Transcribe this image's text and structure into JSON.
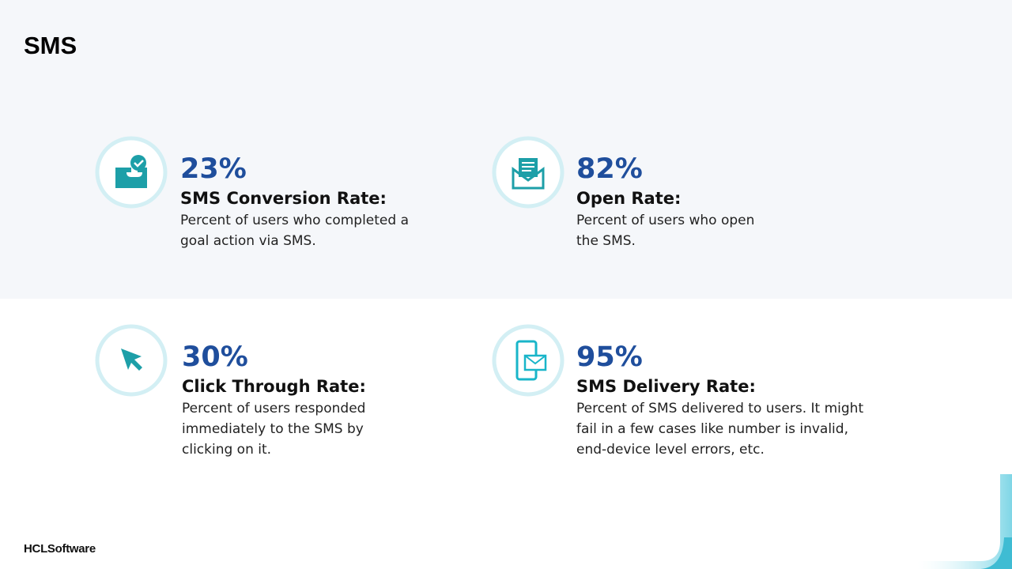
{
  "header": {
    "title": "SMS"
  },
  "metrics": [
    {
      "value": "23%",
      "label": "SMS Conversion Rate:",
      "description": [
        "Percent of users who completed a",
        "goal action via SMS."
      ]
    },
    {
      "value": "82%",
      "label": "Open Rate:",
      "description": [
        "Percent of users who open",
        "the SMS."
      ]
    },
    {
      "value": "30%",
      "label": "Click Through Rate:",
      "description": [
        "Percent of users responded",
        "immediately to the SMS by",
        "clicking on it."
      ]
    },
    {
      "value": "95%",
      "label": "SMS Delivery Rate:",
      "description": [
        "Percent of SMS delivered to users. It might",
        "fail in a few cases like number is invalid,",
        "end-device level errors, etc."
      ]
    }
  ],
  "footer": {
    "brand": "HCLSoftware"
  }
}
